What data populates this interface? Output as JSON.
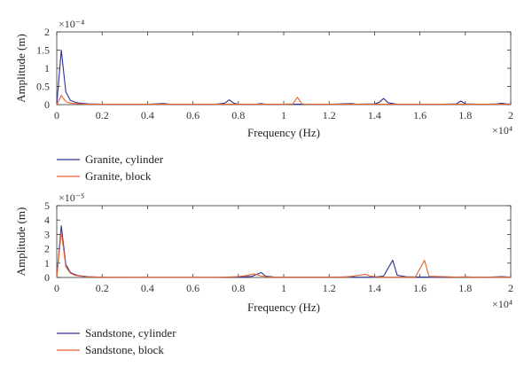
{
  "chart_data": [
    {
      "type": "line",
      "xlabel": "Frequency (Hz)",
      "ylabel": "Amplitude (m)",
      "y_multiplier": "×10⁻⁴",
      "x_multiplier": "×10⁴",
      "xlim": [
        0,
        2
      ],
      "ylim": [
        0,
        2
      ],
      "x_ticks": [
        "0",
        "0.2",
        "0.4",
        "0.6",
        "0.8",
        "1",
        "1.2",
        "1.4",
        "1.6",
        "1.8",
        "2"
      ],
      "y_ticks": [
        "0",
        "0.5",
        "1",
        "1.5",
        "2"
      ],
      "legend_position": "below",
      "series": [
        {
          "name": "Granite, cylinder",
          "color": "#2e3192",
          "points": [
            [
              0,
              0
            ],
            [
              0.02,
              1.5
            ],
            [
              0.04,
              0.35
            ],
            [
              0.06,
              0.12
            ],
            [
              0.08,
              0.07
            ],
            [
              0.1,
              0.04
            ],
            [
              0.14,
              0.02
            ],
            [
              0.2,
              0.01
            ],
            [
              0.3,
              0.01
            ],
            [
              0.4,
              0.01
            ],
            [
              0.47,
              0.03
            ],
            [
              0.5,
              0.01
            ],
            [
              0.6,
              0.01
            ],
            [
              0.7,
              0.01
            ],
            [
              0.74,
              0.04
            ],
            [
              0.76,
              0.13
            ],
            [
              0.78,
              0.04
            ],
            [
              0.8,
              0.01
            ],
            [
              0.88,
              0.01
            ],
            [
              0.9,
              0.03
            ],
            [
              0.92,
              0.01
            ],
            [
              1.0,
              0.01
            ],
            [
              1.1,
              0.01
            ],
            [
              1.2,
              0.01
            ],
            [
              1.3,
              0.03
            ],
            [
              1.32,
              0.01
            ],
            [
              1.4,
              0.02
            ],
            [
              1.42,
              0.06
            ],
            [
              1.44,
              0.17
            ],
            [
              1.46,
              0.05
            ],
            [
              1.5,
              0.01
            ],
            [
              1.6,
              0.01
            ],
            [
              1.7,
              0.01
            ],
            [
              1.76,
              0.02
            ],
            [
              1.78,
              0.1
            ],
            [
              1.8,
              0.02
            ],
            [
              1.86,
              0.01
            ],
            [
              1.9,
              0.01
            ],
            [
              1.94,
              0.02
            ],
            [
              1.96,
              0.04
            ],
            [
              1.98,
              0.02
            ],
            [
              2.0,
              0.01
            ]
          ]
        },
        {
          "name": "Granite, block",
          "color": "#e8622c",
          "points": [
            [
              0,
              0
            ],
            [
              0.02,
              0.25
            ],
            [
              0.04,
              0.08
            ],
            [
              0.06,
              0.04
            ],
            [
              0.1,
              0.02
            ],
            [
              0.14,
              0.01
            ],
            [
              0.2,
              0.01
            ],
            [
              0.3,
              0.01
            ],
            [
              0.4,
              0.01
            ],
            [
              0.5,
              0.01
            ],
            [
              0.6,
              0.01
            ],
            [
              0.7,
              0.01
            ],
            [
              0.8,
              0.01
            ],
            [
              0.9,
              0.01
            ],
            [
              1.0,
              0.01
            ],
            [
              1.04,
              0.02
            ],
            [
              1.06,
              0.2
            ],
            [
              1.08,
              0.02
            ],
            [
              1.1,
              0.01
            ],
            [
              1.2,
              0.01
            ],
            [
              1.3,
              0.01
            ],
            [
              1.4,
              0.01
            ],
            [
              1.5,
              0.01
            ],
            [
              1.6,
              0.01
            ],
            [
              1.7,
              0.01
            ],
            [
              1.8,
              0.01
            ],
            [
              1.9,
              0.01
            ],
            [
              2.0,
              0.01
            ]
          ]
        }
      ]
    },
    {
      "type": "line",
      "xlabel": "Frequency (Hz)",
      "ylabel": "Amplitude (m)",
      "y_multiplier": "×10⁻⁵",
      "x_multiplier": "×10⁴",
      "xlim": [
        0,
        2
      ],
      "ylim": [
        0,
        5
      ],
      "x_ticks": [
        "0",
        "0.2",
        "0.4",
        "0.6",
        "0.8",
        "1",
        "1.2",
        "1.4",
        "1.6",
        "1.8",
        "2"
      ],
      "y_ticks": [
        "0",
        "1",
        "2",
        "3",
        "4",
        "5"
      ],
      "legend_position": "below",
      "series": [
        {
          "name": "Sandstone, cylinder",
          "color": "#2e3192",
          "points": [
            [
              0,
              0
            ],
            [
              0.02,
              3.6
            ],
            [
              0.04,
              0.9
            ],
            [
              0.06,
              0.35
            ],
            [
              0.08,
              0.2
            ],
            [
              0.1,
              0.12
            ],
            [
              0.14,
              0.05
            ],
            [
              0.2,
              0.02
            ],
            [
              0.3,
              0.01
            ],
            [
              0.4,
              0.01
            ],
            [
              0.5,
              0.01
            ],
            [
              0.6,
              0.01
            ],
            [
              0.7,
              0.01
            ],
            [
              0.8,
              0.02
            ],
            [
              0.86,
              0.08
            ],
            [
              0.9,
              0.35
            ],
            [
              0.92,
              0.1
            ],
            [
              0.96,
              0.03
            ],
            [
              1.0,
              0.02
            ],
            [
              1.1,
              0.02
            ],
            [
              1.2,
              0.02
            ],
            [
              1.3,
              0.05
            ],
            [
              1.32,
              0.02
            ],
            [
              1.4,
              0.03
            ],
            [
              1.44,
              0.1
            ],
            [
              1.48,
              1.2
            ],
            [
              1.5,
              0.15
            ],
            [
              1.54,
              0.05
            ],
            [
              1.6,
              0.03
            ],
            [
              1.7,
              0.02
            ],
            [
              1.8,
              0.03
            ],
            [
              1.9,
              0.02
            ],
            [
              1.96,
              0.06
            ],
            [
              2.0,
              0.03
            ]
          ]
        },
        {
          "name": "Sandstone, block",
          "color": "#e8622c",
          "points": [
            [
              0,
              0
            ],
            [
              0.02,
              3.2
            ],
            [
              0.04,
              0.75
            ],
            [
              0.06,
              0.3
            ],
            [
              0.08,
              0.15
            ],
            [
              0.12,
              0.06
            ],
            [
              0.2,
              0.02
            ],
            [
              0.3,
              0.01
            ],
            [
              0.4,
              0.01
            ],
            [
              0.5,
              0.01
            ],
            [
              0.6,
              0.01
            ],
            [
              0.7,
              0.01
            ],
            [
              0.8,
              0.06
            ],
            [
              0.84,
              0.15
            ],
            [
              0.87,
              0.25
            ],
            [
              0.9,
              0.1
            ],
            [
              0.94,
              0.03
            ],
            [
              1.0,
              0.02
            ],
            [
              1.1,
              0.02
            ],
            [
              1.2,
              0.02
            ],
            [
              1.28,
              0.04
            ],
            [
              1.33,
              0.15
            ],
            [
              1.36,
              0.22
            ],
            [
              1.38,
              0.1
            ],
            [
              1.42,
              0.03
            ],
            [
              1.5,
              0.02
            ],
            [
              1.58,
              0.03
            ],
            [
              1.62,
              1.2
            ],
            [
              1.64,
              0.08
            ],
            [
              1.7,
              0.06
            ],
            [
              1.76,
              0.03
            ],
            [
              1.8,
              0.05
            ],
            [
              1.84,
              0.02
            ],
            [
              1.9,
              0.02
            ],
            [
              2.0,
              0.02
            ]
          ]
        }
      ]
    }
  ]
}
